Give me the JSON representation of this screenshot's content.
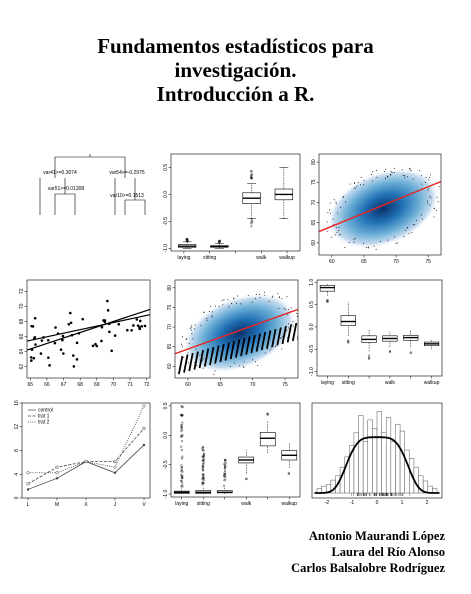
{
  "cover": {
    "title_lines": [
      "Fundamentos estadísticos para",
      "investigación.",
      "Introducción a R."
    ],
    "authors": [
      "Antonio Maurandi López",
      "Laura del Río Alonso",
      "Carlos Balsalobre Rodríguez"
    ]
  },
  "colors": {
    "regression_line": "#e8261f",
    "density_dark": "#08306b",
    "density_light": "#c6dbef"
  },
  "tree": {
    "nodes": [
      "var41>=0.3074",
      "var54>=-0.2975",
      "var51>=0.01308",
      "var10>=0.1513"
    ]
  },
  "chart_data": [
    {
      "type": "box",
      "categories": [
        "laying",
        "sitting",
        "walk",
        "walkup"
      ],
      "tick_labels_shown": [
        "laying",
        "sitting",
        "",
        "walk",
        "walkup"
      ],
      "y_ticks": [
        "-1.0",
        "-0.5",
        "0.0",
        "0.5"
      ],
      "ylim": [
        -1.05,
        0.75
      ]
    },
    {
      "type": "scatter",
      "subtype": "smoothScatter with regression line",
      "x_ticks": [
        "60",
        "65",
        "70",
        "75"
      ],
      "y_ticks": [
        "60",
        "65",
        "70",
        "75",
        "80"
      ],
      "xlim": [
        58,
        77
      ],
      "ylim": [
        57,
        82
      ]
    },
    {
      "type": "scatter",
      "subtype": "points with two fitted lines",
      "x_ticks": [
        "65",
        "66",
        "67",
        "68",
        "69",
        "70",
        "71",
        "72"
      ],
      "y_ticks": [
        "62",
        "64",
        "66",
        "68",
        "70",
        "72"
      ],
      "xlim": [
        64.8,
        72.2
      ],
      "ylim": [
        60.5,
        73.5
      ]
    },
    {
      "type": "scatter",
      "subtype": "smoothScatter with banded points and regression line",
      "x_ticks": [
        "60",
        "65",
        "70",
        "75"
      ],
      "y_ticks": [
        "60",
        "65",
        "70",
        "75",
        "80"
      ],
      "xlim": [
        58,
        77
      ],
      "ylim": [
        57,
        82
      ]
    },
    {
      "type": "box",
      "categories": [
        "laying",
        "sitting",
        "walk",
        "walkup"
      ],
      "tick_labels_shown": [
        "laying",
        "sitting",
        "",
        "walk",
        "",
        "walkup"
      ],
      "y_ticks": [
        "-1.0",
        "-0.5",
        "0.0",
        "0.5",
        "1.0"
      ],
      "ylim": [
        -1.1,
        1.05
      ]
    },
    {
      "type": "line",
      "categories": [
        "L",
        "M",
        "X",
        "J",
        "V"
      ],
      "series": [
        {
          "name": "control",
          "values": [
            1,
            3,
            6,
            4,
            9
          ]
        },
        {
          "name": "trat 1",
          "values": [
            2,
            5,
            6,
            6,
            12
          ]
        },
        {
          "name": "trat 2",
          "values": [
            4,
            4,
            6,
            5,
            16
          ]
        }
      ],
      "y_ticks": [
        "0",
        "4",
        "8",
        "12",
        "16"
      ],
      "ylim": [
        0,
        16
      ],
      "legend": "top-left"
    },
    {
      "type": "box",
      "categories": [
        "laying",
        "sitting",
        "walk",
        "walkup"
      ],
      "tick_labels_shown": [
        "laying",
        "sitting",
        "",
        "walk",
        "",
        "walkup"
      ],
      "y_ticks": [
        "-1.0",
        "-0.5",
        "0.0",
        "0.5"
      ],
      "ylim": [
        -1.05,
        0.55
      ]
    },
    {
      "type": "histogram",
      "subtype": "histogram with density curve and rug",
      "x_ticks": [
        "-2",
        "-1",
        "0",
        "1",
        "2"
      ],
      "xlim": [
        -2.6,
        2.6
      ]
    }
  ]
}
